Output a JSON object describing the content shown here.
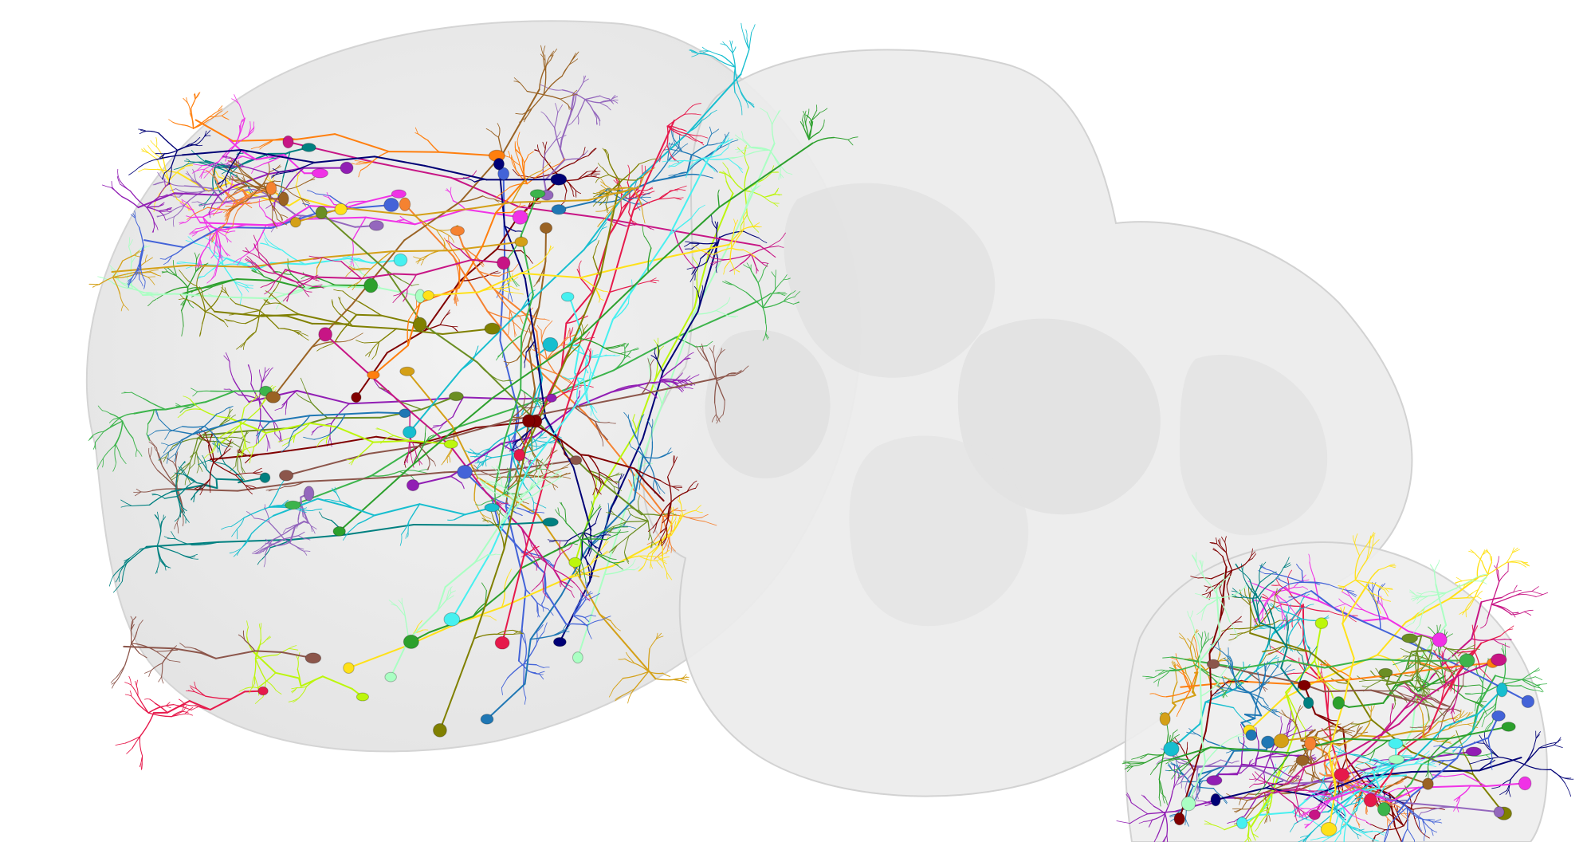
{
  "scene": {
    "background": "#ffffff",
    "mesh_fill": "#d8d8d8",
    "mesh_edge": "#bdbdbd",
    "neuron_palette": [
      "#e6194b",
      "#3cb44b",
      "#ffe119",
      "#4363d8",
      "#f58231",
      "#911eb4",
      "#46f0f0",
      "#f032e6",
      "#bcf60c",
      "#008080",
      "#9a6324",
      "#800000",
      "#aaffc3",
      "#808000",
      "#000075",
      "#d4a017",
      "#1f77b4",
      "#2ca02c",
      "#9467bd",
      "#8c564b",
      "#17becf",
      "#c71585",
      "#6b8e23",
      "#ff7f0e"
    ]
  }
}
